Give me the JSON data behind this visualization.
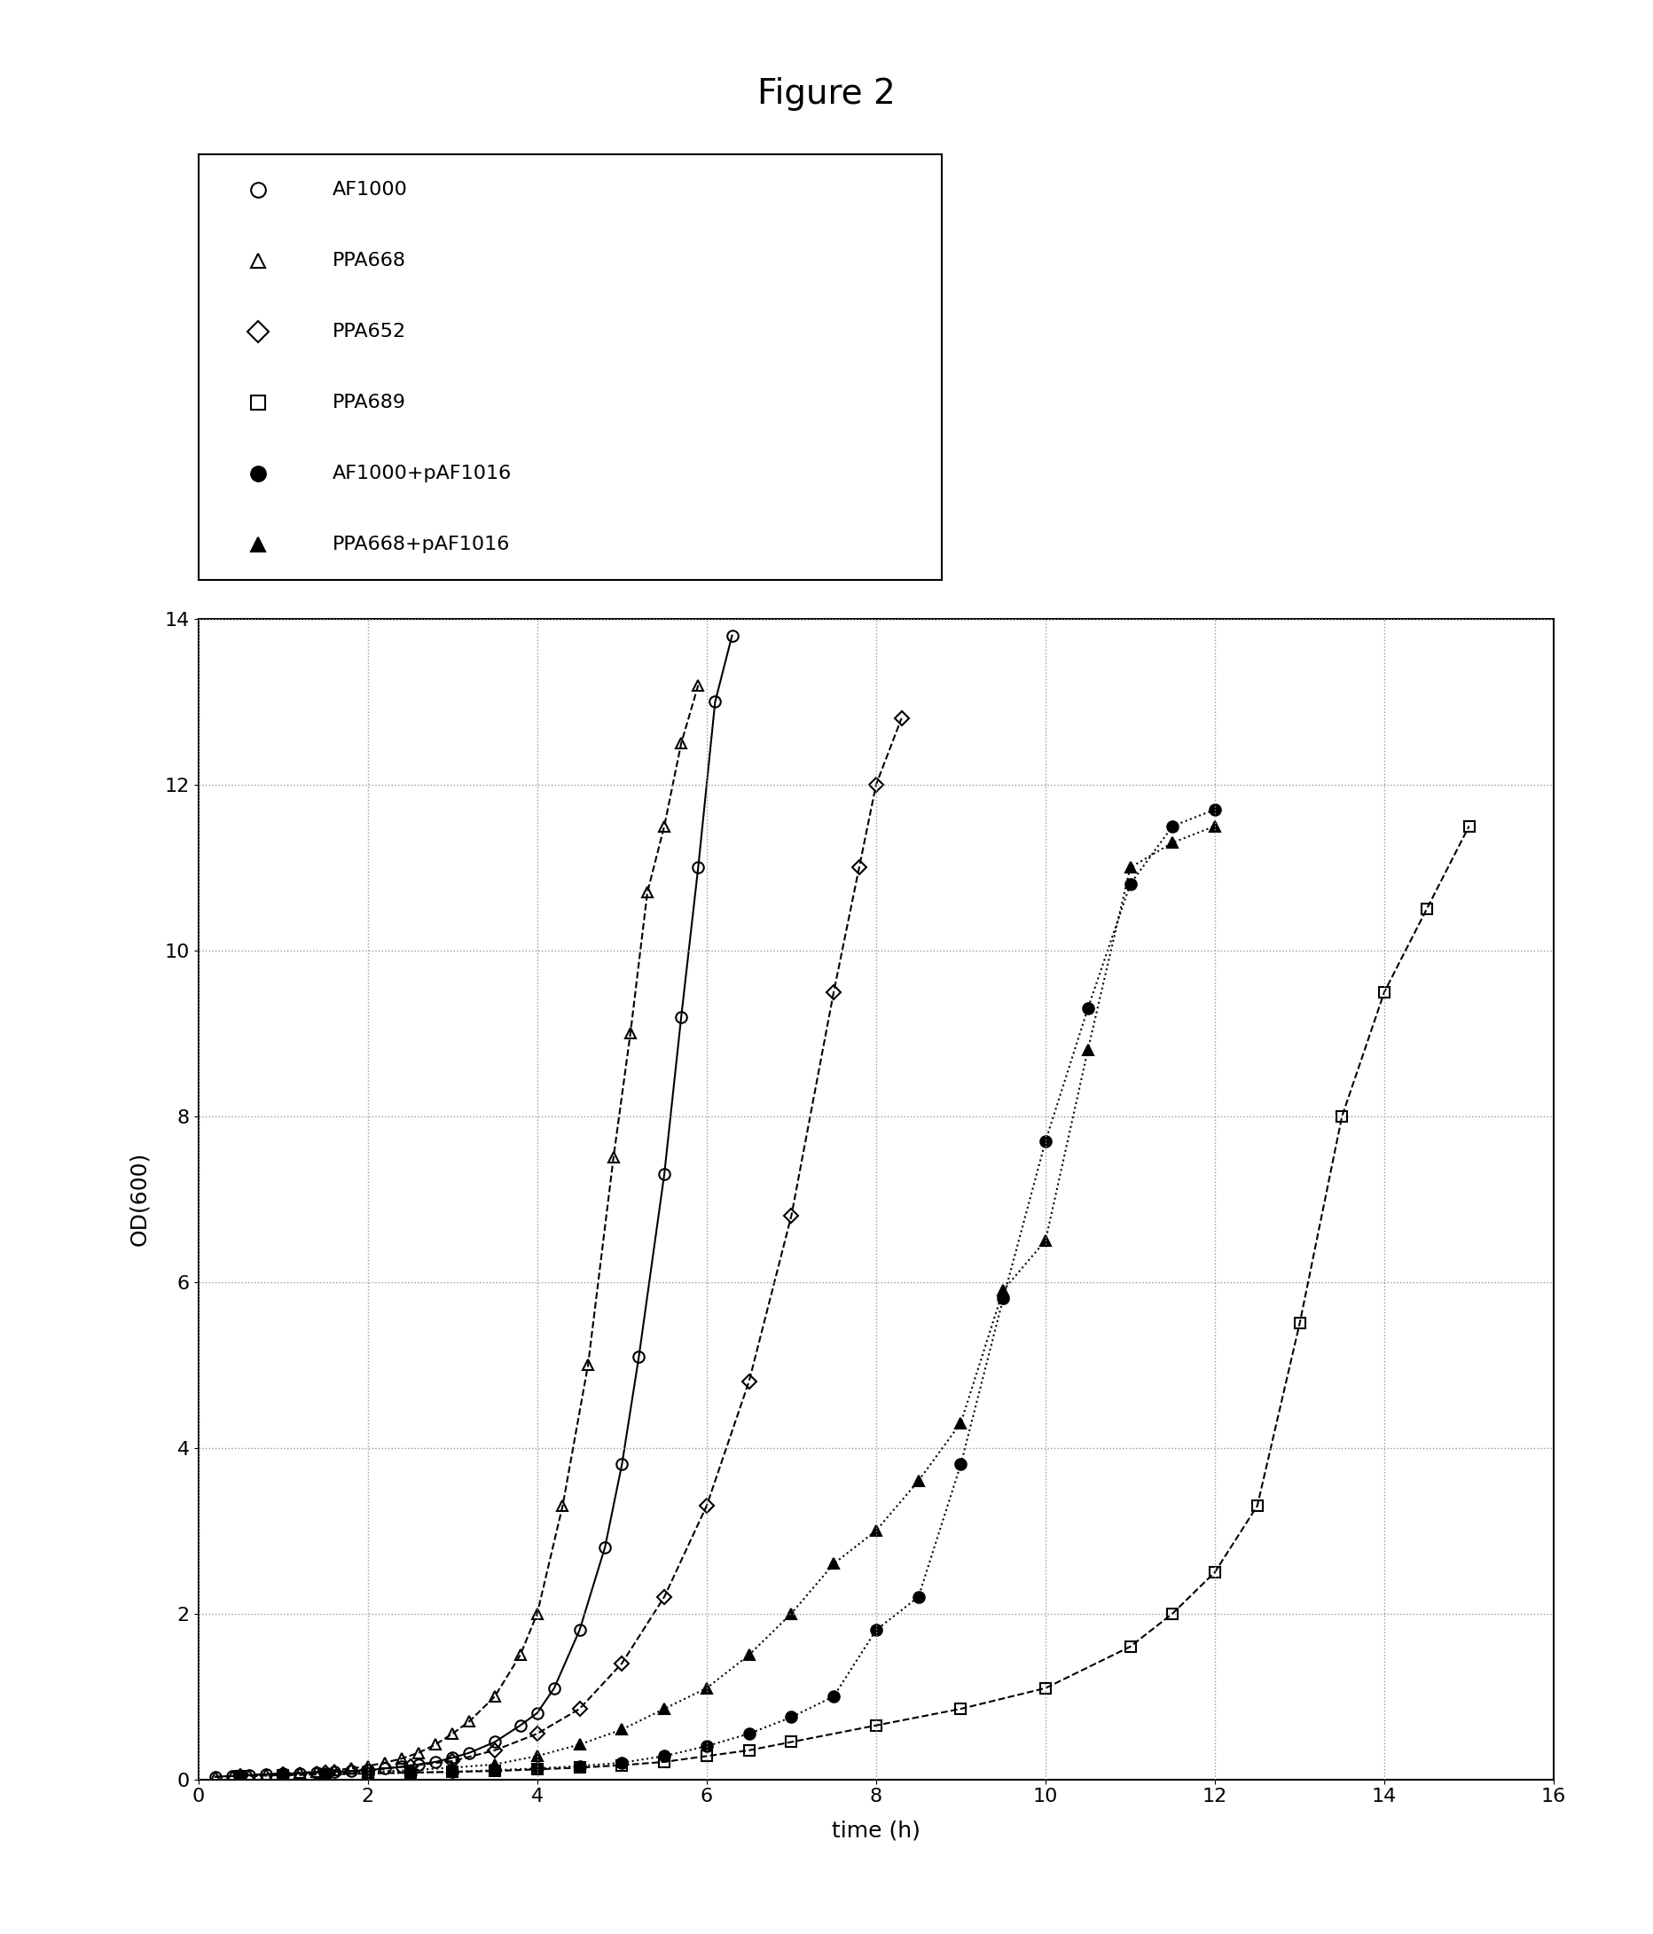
{
  "title": "Figure 2",
  "xlabel": "time (h)",
  "ylabel": "OD(600)",
  "xlim": [
    0,
    16
  ],
  "ylim": [
    0,
    14
  ],
  "xticks": [
    0,
    2,
    4,
    6,
    8,
    10,
    12,
    14,
    16
  ],
  "yticks": [
    0,
    2,
    4,
    6,
    8,
    10,
    12,
    14
  ],
  "series": {
    "AF1000": {
      "x": [
        0.2,
        0.4,
        0.6,
        0.8,
        1.0,
        1.2,
        1.4,
        1.6,
        1.8,
        2.0,
        2.2,
        2.4,
        2.6,
        2.8,
        3.0,
        3.2,
        3.5,
        3.8,
        4.0,
        4.2,
        4.5,
        4.8,
        5.0,
        5.2,
        5.5,
        5.7,
        5.9,
        6.1,
        6.3
      ],
      "y": [
        0.03,
        0.04,
        0.05,
        0.06,
        0.07,
        0.07,
        0.08,
        0.09,
        0.1,
        0.11,
        0.13,
        0.15,
        0.18,
        0.21,
        0.26,
        0.32,
        0.45,
        0.65,
        0.8,
        1.1,
        1.8,
        2.8,
        3.8,
        5.1,
        7.3,
        9.2,
        11.0,
        13.0,
        13.8
      ],
      "marker": "o",
      "fillstyle": "none",
      "linestyle": "-",
      "color": "#000000",
      "markersize": 9,
      "linewidth": 1.5,
      "label": "AF1000"
    },
    "PPA668": {
      "x": [
        0.2,
        0.4,
        0.6,
        0.8,
        1.0,
        1.2,
        1.4,
        1.6,
        1.8,
        2.0,
        2.2,
        2.4,
        2.6,
        2.8,
        3.0,
        3.2,
        3.5,
        3.8,
        4.0,
        4.3,
        4.6,
        4.9,
        5.1,
        5.3,
        5.5,
        5.7,
        5.9
      ],
      "y": [
        0.03,
        0.04,
        0.05,
        0.06,
        0.07,
        0.08,
        0.09,
        0.11,
        0.13,
        0.16,
        0.2,
        0.25,
        0.32,
        0.42,
        0.55,
        0.7,
        1.0,
        1.5,
        2.0,
        3.3,
        5.0,
        7.5,
        9.0,
        10.7,
        11.5,
        12.5,
        13.2
      ],
      "marker": "^",
      "fillstyle": "none",
      "linestyle": "--",
      "color": "#000000",
      "markersize": 9,
      "linewidth": 1.5,
      "label": "PPA668"
    },
    "PPA652": {
      "x": [
        0.5,
        1.0,
        1.5,
        2.0,
        2.5,
        3.0,
        3.5,
        4.0,
        4.5,
        5.0,
        5.5,
        6.0,
        6.5,
        7.0,
        7.5,
        7.8,
        8.0,
        8.3
      ],
      "y": [
        0.04,
        0.06,
        0.08,
        0.11,
        0.16,
        0.22,
        0.35,
        0.55,
        0.85,
        1.4,
        2.2,
        3.3,
        4.8,
        6.8,
        9.5,
        11.0,
        12.0,
        12.8
      ],
      "marker": "D",
      "fillstyle": "none",
      "linestyle": "--",
      "color": "#000000",
      "markersize": 8,
      "linewidth": 1.5,
      "label": "PPA652"
    },
    "PPA689": {
      "x": [
        0.5,
        1.0,
        1.5,
        2.0,
        2.5,
        3.0,
        3.5,
        4.0,
        4.5,
        5.0,
        5.5,
        6.0,
        6.5,
        7.0,
        8.0,
        9.0,
        10.0,
        11.0,
        11.5,
        12.0,
        12.5,
        13.0,
        13.5,
        14.0,
        14.5,
        15.0
      ],
      "y": [
        0.04,
        0.05,
        0.06,
        0.07,
        0.08,
        0.09,
        0.1,
        0.12,
        0.14,
        0.17,
        0.21,
        0.28,
        0.35,
        0.45,
        0.65,
        0.85,
        1.1,
        1.6,
        2.0,
        2.5,
        3.3,
        5.5,
        8.0,
        9.5,
        10.5,
        11.5
      ],
      "marker": "s",
      "fillstyle": "none",
      "linestyle": "--",
      "color": "#000000",
      "markersize": 9,
      "linewidth": 1.5,
      "label": "PPA689"
    },
    "AF1000+pAF1016": {
      "x": [
        0.5,
        1.0,
        1.5,
        2.0,
        2.5,
        3.0,
        3.5,
        4.0,
        4.5,
        5.0,
        5.5,
        6.0,
        6.5,
        7.0,
        7.5,
        8.0,
        8.5,
        9.0,
        9.5,
        10.0,
        10.5,
        11.0,
        11.5,
        12.0
      ],
      "y": [
        0.04,
        0.05,
        0.06,
        0.07,
        0.08,
        0.09,
        0.11,
        0.13,
        0.16,
        0.2,
        0.28,
        0.4,
        0.55,
        0.75,
        1.0,
        1.8,
        2.2,
        3.8,
        5.8,
        7.7,
        9.3,
        10.8,
        11.5,
        11.7
      ],
      "marker": "o",
      "fillstyle": "full",
      "linestyle": ":",
      "color": "#000000",
      "markersize": 9,
      "linewidth": 1.5,
      "label": "AF1000+pAF1016"
    },
    "PPA668+pAF1016": {
      "x": [
        0.5,
        1.0,
        1.5,
        2.0,
        2.5,
        3.0,
        3.5,
        4.0,
        4.5,
        5.0,
        5.5,
        6.0,
        6.5,
        7.0,
        7.5,
        8.0,
        8.5,
        9.0,
        9.5,
        10.0,
        10.5,
        11.0,
        11.5,
        12.0
      ],
      "y": [
        0.04,
        0.05,
        0.07,
        0.09,
        0.11,
        0.14,
        0.18,
        0.28,
        0.42,
        0.6,
        0.85,
        1.1,
        1.5,
        2.0,
        2.6,
        3.0,
        3.6,
        4.3,
        5.9,
        6.5,
        8.8,
        11.0,
        11.3,
        11.5
      ],
      "marker": "^",
      "fillstyle": "full",
      "linestyle": ":",
      "color": "#000000",
      "markersize": 9,
      "linewidth": 1.5,
      "label": "PPA668+pAF1016"
    }
  },
  "background_color": "#ffffff",
  "grid_color": "#999999",
  "title_fontsize": 28,
  "label_fontsize": 18,
  "tick_fontsize": 16,
  "legend_fontsize": 16
}
